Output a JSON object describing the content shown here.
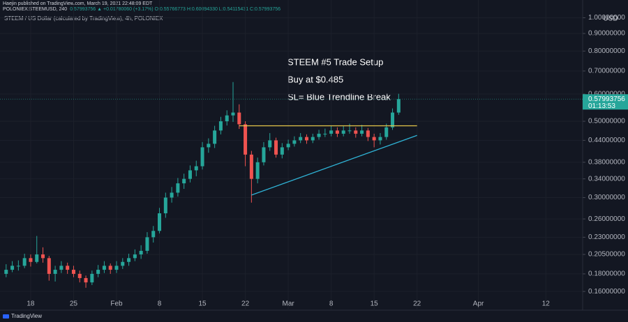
{
  "header": {
    "publisher": "Haejin published on TradingView.com, March 19, 2021 22:48:09 EDT",
    "symbol": "POLONIEX:STEEMUSD, 240",
    "quote": "0.57993756 ▲ +0.01780060 (+3.17%) O:0.55766773 H:0.60094330 L:0.54115431 C:0.57993756"
  },
  "footer": "TradingView",
  "chart_data": {
    "type": "candlestick",
    "title": "STEEM / US Dollar (calculated by TradingView), 4h, POLONIEX",
    "y_unit": "USD",
    "log_scale": true,
    "grid": true,
    "up_color": "#26a69a",
    "down_color": "#ef5350",
    "xlim": [
      "2021-01-13",
      "2021-04-18"
    ],
    "ylim": [
      0.15,
      1.05
    ],
    "xticks": [
      {
        "value": "2021-01-18",
        "label": "18"
      },
      {
        "value": "2021-01-25",
        "label": "25"
      },
      {
        "value": "2021-02-01",
        "label": "Feb"
      },
      {
        "value": "2021-02-08",
        "label": "8"
      },
      {
        "value": "2021-02-15",
        "label": "15"
      },
      {
        "value": "2021-02-22",
        "label": "22"
      },
      {
        "value": "2021-03-01",
        "label": "Mar"
      },
      {
        "value": "2021-03-08",
        "label": "8"
      },
      {
        "value": "2021-03-15",
        "label": "15"
      },
      {
        "value": "2021-03-22",
        "label": "22"
      },
      {
        "value": "2021-04-01",
        "label": "Apr"
      },
      {
        "value": "2021-04-12",
        "label": "12"
      }
    ],
    "yticks": [
      {
        "value": 0.16,
        "label": "0.16000000"
      },
      {
        "value": 0.18,
        "label": "0.18000000"
      },
      {
        "value": 0.205,
        "label": "0.20500000"
      },
      {
        "value": 0.23,
        "label": "0.23000000"
      },
      {
        "value": 0.26,
        "label": "0.26000000"
      },
      {
        "value": 0.3,
        "label": "0.30000000"
      },
      {
        "value": 0.34,
        "label": "0.34000000"
      },
      {
        "value": 0.38,
        "label": "0.38000000"
      },
      {
        "value": 0.44,
        "label": "0.44000000"
      },
      {
        "value": 0.5,
        "label": "0.50000000"
      },
      {
        "value": 0.6,
        "label": "0.60000000"
      },
      {
        "value": 0.7,
        "label": "0.70000000"
      },
      {
        "value": 0.8,
        "label": "0.80000000"
      },
      {
        "value": 0.9,
        "label": "0.90000000"
      },
      {
        "value": 1.0,
        "label": "1.00000000"
      }
    ],
    "x": [
      "2021-01-14",
      "2021-01-15",
      "2021-01-16",
      "2021-01-17",
      "2021-01-18",
      "2021-01-19",
      "2021-01-20",
      "2021-01-21",
      "2021-01-22",
      "2021-01-23",
      "2021-01-24",
      "2021-01-25",
      "2021-01-26",
      "2021-01-27",
      "2021-01-28",
      "2021-01-29",
      "2021-01-30",
      "2021-01-31",
      "2021-02-01",
      "2021-02-02",
      "2021-02-03",
      "2021-02-04",
      "2021-02-05",
      "2021-02-06",
      "2021-02-07",
      "2021-02-08",
      "2021-02-09",
      "2021-02-10",
      "2021-02-11",
      "2021-02-12",
      "2021-02-13",
      "2021-02-14",
      "2021-02-15",
      "2021-02-16",
      "2021-02-17",
      "2021-02-18",
      "2021-02-19",
      "2021-02-20",
      "2021-02-21",
      "2021-02-22",
      "2021-02-23",
      "2021-02-24",
      "2021-02-25",
      "2021-02-26",
      "2021-02-27",
      "2021-02-28",
      "2021-03-01",
      "2021-03-02",
      "2021-03-03",
      "2021-03-04",
      "2021-03-05",
      "2021-03-06",
      "2021-03-07",
      "2021-03-08",
      "2021-03-09",
      "2021-03-10",
      "2021-03-11",
      "2021-03-12",
      "2021-03-13",
      "2021-03-14",
      "2021-03-15",
      "2021-03-16",
      "2021-03-17",
      "2021-03-18",
      "2021-03-19"
    ],
    "open": [
      0.18,
      0.185,
      0.19,
      0.19,
      0.2,
      0.195,
      0.205,
      0.2,
      0.18,
      0.185,
      0.19,
      0.185,
      0.18,
      0.175,
      0.17,
      0.18,
      0.185,
      0.19,
      0.185,
      0.19,
      0.195,
      0.2,
      0.205,
      0.21,
      0.23,
      0.24,
      0.27,
      0.3,
      0.31,
      0.33,
      0.34,
      0.36,
      0.37,
      0.42,
      0.43,
      0.47,
      0.5,
      0.52,
      0.53,
      0.49,
      0.4,
      0.34,
      0.38,
      0.42,
      0.44,
      0.4,
      0.42,
      0.43,
      0.44,
      0.45,
      0.44,
      0.45,
      0.46,
      0.46,
      0.47,
      0.46,
      0.47,
      0.47,
      0.46,
      0.47,
      0.45,
      0.44,
      0.45,
      0.48,
      0.53
    ],
    "high": [
      0.192,
      0.196,
      0.197,
      0.206,
      0.205,
      0.232,
      0.215,
      0.203,
      0.19,
      0.196,
      0.194,
      0.19,
      0.184,
      0.178,
      0.184,
      0.191,
      0.196,
      0.193,
      0.196,
      0.2,
      0.206,
      0.212,
      0.218,
      0.238,
      0.248,
      0.28,
      0.31,
      0.322,
      0.342,
      0.352,
      0.372,
      0.384,
      0.435,
      0.446,
      0.485,
      0.515,
      0.538,
      0.65,
      0.56,
      0.5,
      0.41,
      0.392,
      0.435,
      0.462,
      0.448,
      0.432,
      0.442,
      0.452,
      0.462,
      0.458,
      0.46,
      0.472,
      0.476,
      0.485,
      0.48,
      0.486,
      0.492,
      0.48,
      0.488,
      0.478,
      0.46,
      0.462,
      0.492,
      0.545,
      0.601
    ],
    "low": [
      0.176,
      0.182,
      0.184,
      0.187,
      0.189,
      0.193,
      0.194,
      0.172,
      0.171,
      0.181,
      0.18,
      0.176,
      0.17,
      0.164,
      0.167,
      0.176,
      0.181,
      0.18,
      0.181,
      0.186,
      0.19,
      0.196,
      0.199,
      0.206,
      0.222,
      0.236,
      0.262,
      0.29,
      0.302,
      0.318,
      0.332,
      0.346,
      0.362,
      0.405,
      0.418,
      0.458,
      0.486,
      0.498,
      0.475,
      0.37,
      0.29,
      0.33,
      0.372,
      0.41,
      0.392,
      0.39,
      0.412,
      0.422,
      0.432,
      0.43,
      0.432,
      0.442,
      0.45,
      0.452,
      0.45,
      0.452,
      0.46,
      0.448,
      0.452,
      0.438,
      0.42,
      0.428,
      0.442,
      0.472,
      0.522
    ],
    "close": [
      0.185,
      0.19,
      0.19,
      0.2,
      0.195,
      0.205,
      0.2,
      0.18,
      0.185,
      0.19,
      0.185,
      0.18,
      0.175,
      0.17,
      0.18,
      0.185,
      0.19,
      0.185,
      0.19,
      0.195,
      0.2,
      0.205,
      0.21,
      0.23,
      0.24,
      0.27,
      0.3,
      0.31,
      0.33,
      0.34,
      0.36,
      0.37,
      0.42,
      0.43,
      0.47,
      0.5,
      0.52,
      0.53,
      0.49,
      0.4,
      0.34,
      0.38,
      0.42,
      0.44,
      0.4,
      0.42,
      0.43,
      0.44,
      0.45,
      0.44,
      0.45,
      0.46,
      0.46,
      0.47,
      0.46,
      0.47,
      0.47,
      0.46,
      0.47,
      0.45,
      0.44,
      0.45,
      0.48,
      0.53,
      0.58
    ],
    "trendlines": [
      {
        "color": "#e6c84a",
        "x": [
          "2021-02-21",
          "2021-03-22"
        ],
        "y": [
          0.485,
          0.485
        ]
      },
      {
        "color": "#2fb3d6",
        "x": [
          "2021-02-23",
          "2021-03-22"
        ],
        "y": [
          0.305,
          0.455
        ]
      }
    ],
    "annotations": [
      "STEEM #5 Trade Setup",
      "Buy at $0.485",
      "SL= Blue Trendline Break"
    ],
    "last_price": 0.57993756,
    "countdown": "01:13:53"
  }
}
